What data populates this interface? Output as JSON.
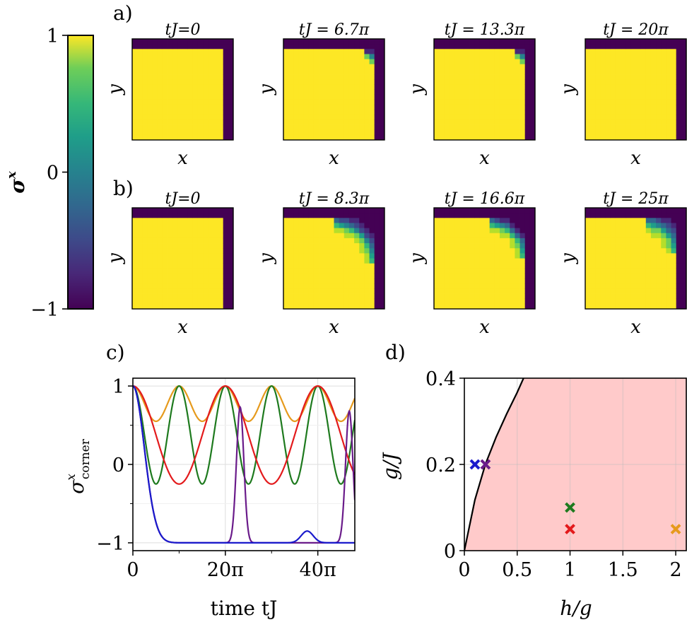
{
  "colorbar": {
    "label": "σ",
    "label_sup": "x",
    "ticks": [
      "1",
      "0",
      "−1"
    ],
    "tick_values": [
      1,
      0,
      -1
    ],
    "colormap": "viridis"
  },
  "panel_a": {
    "label": "a)",
    "snapshots": [
      {
        "title": "tJ=0",
        "corner_r": 0,
        "edge_width": 0
      },
      {
        "title": "tJ = 6.7π",
        "corner_r": 1.8,
        "edge_width": 0.6
      },
      {
        "title": "tJ = 13.3π",
        "corner_r": 1.8,
        "edge_width": 0.6
      },
      {
        "title": "tJ = 20π",
        "corner_r": 0,
        "edge_width": 0
      }
    ],
    "xlabel": "x",
    "ylabel": "y"
  },
  "panel_b": {
    "label": "b)",
    "snapshots": [
      {
        "title": "tJ=0",
        "corner_r": 0,
        "edge_width": 0
      },
      {
        "title": "tJ = 8.3π",
        "corner_r": 8.5,
        "edge_width": 1.3
      },
      {
        "title": "tJ = 16.6π",
        "corner_r": 7.5,
        "edge_width": 1.2
      },
      {
        "title": "tJ = 25π",
        "corner_r": 6.0,
        "edge_width": 1.6
      }
    ],
    "xlabel": "x",
    "ylabel": "y"
  },
  "chart_data": [
    {
      "type": "line",
      "panel": "c)",
      "xlabel": "time tJ",
      "ylabel": "σ",
      "ylabel_sup": "x",
      "ylabel_sub": "corner",
      "x_unit": "π",
      "xlim": [
        0,
        48
      ],
      "ylim": [
        -1.1,
        1.1
      ],
      "xticks": [
        0,
        20,
        40
      ],
      "xtick_labels": [
        "0",
        "20π",
        "40π"
      ],
      "yticks": [
        1,
        0,
        -1
      ],
      "ytick_labels": [
        "1",
        "0",
        "−1"
      ],
      "grid": true,
      "series": [
        {
          "color": "#e69a1c",
          "kind": "cosine",
          "period": 10,
          "min": 0.55
        },
        {
          "color": "#1e7a1e",
          "kind": "cosine",
          "period": 10,
          "min": -0.25
        },
        {
          "color": "#e31a1c",
          "kind": "cosine",
          "period": 20,
          "min": -0.25
        },
        {
          "color": "#6a1b8a",
          "kind": "revival",
          "min": -1,
          "peaks": [
            [
              23.2,
              0.73,
              0.8
            ],
            [
              46.8,
              0.68,
              0.8
            ]
          ],
          "decay": 3.5
        },
        {
          "color": "#1a1acc",
          "kind": "revival",
          "min": -1,
          "peaks": [
            [
              37.7,
              -0.85,
              1.3
            ]
          ],
          "decay": 3.5
        }
      ]
    },
    {
      "type": "area",
      "panel": "d)",
      "xlabel": "h/g",
      "ylabel": "g/J",
      "xlim": [
        0,
        2.1
      ],
      "ylim": [
        0,
        0.4
      ],
      "xticks": [
        0,
        0.5,
        1,
        1.5,
        2
      ],
      "xtick_labels": [
        "0",
        "0.5",
        "1",
        "1.5",
        "2"
      ],
      "yticks": [
        0,
        0.2,
        0.4
      ],
      "ytick_labels": [
        "0",
        "0.2",
        "0.4"
      ],
      "grid": true,
      "region_color": "#ffcaca",
      "boundary": {
        "x": [
          0,
          0.1,
          0.2,
          0.3,
          0.4,
          0.5,
          0.56
        ],
        "y": [
          0,
          0.118,
          0.201,
          0.263,
          0.317,
          0.367,
          0.4
        ]
      },
      "points": [
        {
          "x": 0.1,
          "y": 0.2,
          "color": "#1a1acc"
        },
        {
          "x": 0.2,
          "y": 0.2,
          "color": "#6a1b8a"
        },
        {
          "x": 1,
          "y": 0.1,
          "color": "#1e7a1e"
        },
        {
          "x": 1,
          "y": 0.05,
          "color": "#e31a1c"
        },
        {
          "x": 2,
          "y": 0.05,
          "color": "#e69a1c"
        }
      ]
    }
  ]
}
